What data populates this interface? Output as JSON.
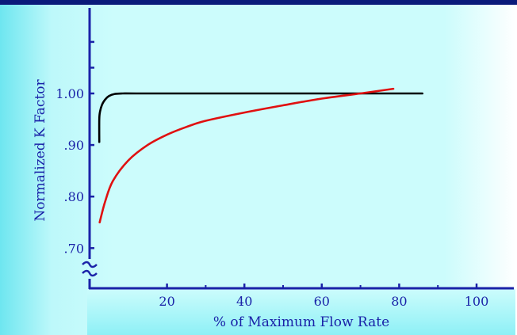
{
  "colors": {
    "top_bar": "#0a1a7a",
    "panel_light": "#ccfcfc",
    "panel_edge": "#6ee6f0",
    "axis": "#1a22a8",
    "text": "#1a22a8",
    "series_black": "#000000",
    "series_red": "#e01010"
  },
  "chart_data": {
    "type": "line",
    "title": "",
    "xlabel": "% of Maximum Flow Rate",
    "ylabel": "Normalized K Factor",
    "xlim": [
      0,
      110
    ],
    "ylim": [
      0.65,
      1.1
    ],
    "x_ticks": [
      20,
      40,
      60,
      80,
      100
    ],
    "x_tick_labels": [
      "20",
      "40",
      "60",
      "80",
      "100"
    ],
    "y_ticks": [
      0.7,
      0.8,
      0.9,
      1.0
    ],
    "y_tick_labels": [
      ".70",
      ".80",
      ".90",
      "1.00"
    ],
    "y_axis_break": true,
    "grid": false,
    "series": [
      {
        "color": "#000000",
        "x": [
          2.5,
          2.5,
          2.7,
          3.2,
          4.0,
          5.0,
          6.5,
          8.5,
          12,
          30,
          50,
          70,
          86
        ],
        "y": [
          0.906,
          0.95,
          0.965,
          0.978,
          0.988,
          0.995,
          0.999,
          1.0,
          1.0,
          1.0,
          1.0,
          1.0,
          1.0
        ]
      },
      {
        "color": "#e01010",
        "x": [
          2.6,
          4,
          6,
          10,
          15,
          20,
          25,
          30,
          40,
          50,
          60,
          70,
          78.5
        ],
        "y": [
          0.75,
          0.79,
          0.83,
          0.87,
          0.9,
          0.92,
          0.935,
          0.947,
          0.963,
          0.977,
          0.99,
          1.0,
          1.009
        ]
      }
    ]
  }
}
